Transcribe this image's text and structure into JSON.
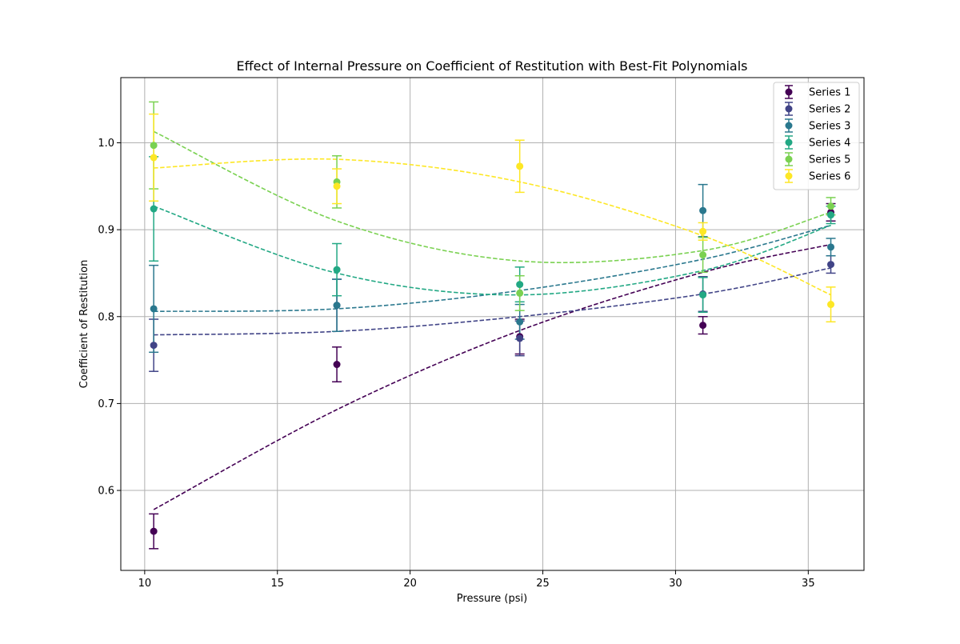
{
  "chart_data": {
    "type": "scatter",
    "title": "Effect of Internal Pressure on Coefficient of Restitution with Best-Fit Polynomials",
    "xlabel": "Pressure (psi)",
    "ylabel": "Coefficient of Restitution",
    "xlim": [
      9.1,
      37.1
    ],
    "ylim": [
      0.508,
      1.075
    ],
    "xticks": [
      10,
      15,
      20,
      25,
      30,
      35
    ],
    "yticks": [
      0.6,
      0.7,
      0.8,
      0.9,
      1.0
    ],
    "xtick_labels": [
      "10",
      "15",
      "20",
      "25",
      "30",
      "35"
    ],
    "ytick_labels": [
      "0.6",
      "0.7",
      "0.8",
      "0.9",
      "1.0"
    ],
    "grid": true,
    "legend_position": "upper right",
    "x": [
      10.34,
      17.24,
      24.13,
      31.03,
      35.85
    ],
    "series": [
      {
        "name": "Series 1",
        "color": "#440154",
        "y": [
          0.553,
          0.745,
          0.777,
          0.79,
          0.92
        ],
        "yerr": [
          0.02,
          0.02,
          0.02,
          0.01,
          0.01
        ],
        "fit": [
          0.578,
          0.693,
          0.784,
          0.851,
          0.883
        ]
      },
      {
        "name": "Series 2",
        "color": "#414487",
        "y": [
          0.767,
          0.813,
          0.775,
          0.826,
          0.86
        ],
        "yerr": [
          0.03,
          0.03,
          0.02,
          0.02,
          0.01
        ],
        "fit": [
          0.779,
          0.783,
          0.8,
          0.826,
          0.856
        ]
      },
      {
        "name": "Series 3",
        "color": "#2a788e",
        "y": [
          0.809,
          0.813,
          0.794,
          0.922,
          0.88
        ],
        "yerr": [
          0.05,
          0.03,
          0.02,
          0.03,
          0.01
        ],
        "fit": [
          0.806,
          0.809,
          0.83,
          0.866,
          0.905
        ]
      },
      {
        "name": "Series 4",
        "color": "#22a884",
        "y": [
          0.924,
          0.854,
          0.837,
          0.825,
          0.917
        ],
        "yerr": [
          0.06,
          0.03,
          0.02,
          0.02,
          0.01
        ],
        "fit": [
          0.927,
          0.85,
          0.825,
          0.853,
          0.905
        ]
      },
      {
        "name": "Series 5",
        "color": "#7ad151",
        "y": [
          0.997,
          0.955,
          0.827,
          0.871,
          0.927
        ],
        "yerr": [
          0.05,
          0.03,
          0.02,
          0.02,
          0.01
        ],
        "fit": [
          1.013,
          0.91,
          0.864,
          0.876,
          0.92
        ]
      },
      {
        "name": "Series 6",
        "color": "#fde725",
        "y": [
          0.983,
          0.95,
          0.973,
          0.898,
          0.814
        ],
        "yerr": [
          0.05,
          0.02,
          0.03,
          0.01,
          0.02
        ],
        "fit": [
          0.971,
          0.981,
          0.955,
          0.893,
          0.825
        ]
      }
    ]
  }
}
